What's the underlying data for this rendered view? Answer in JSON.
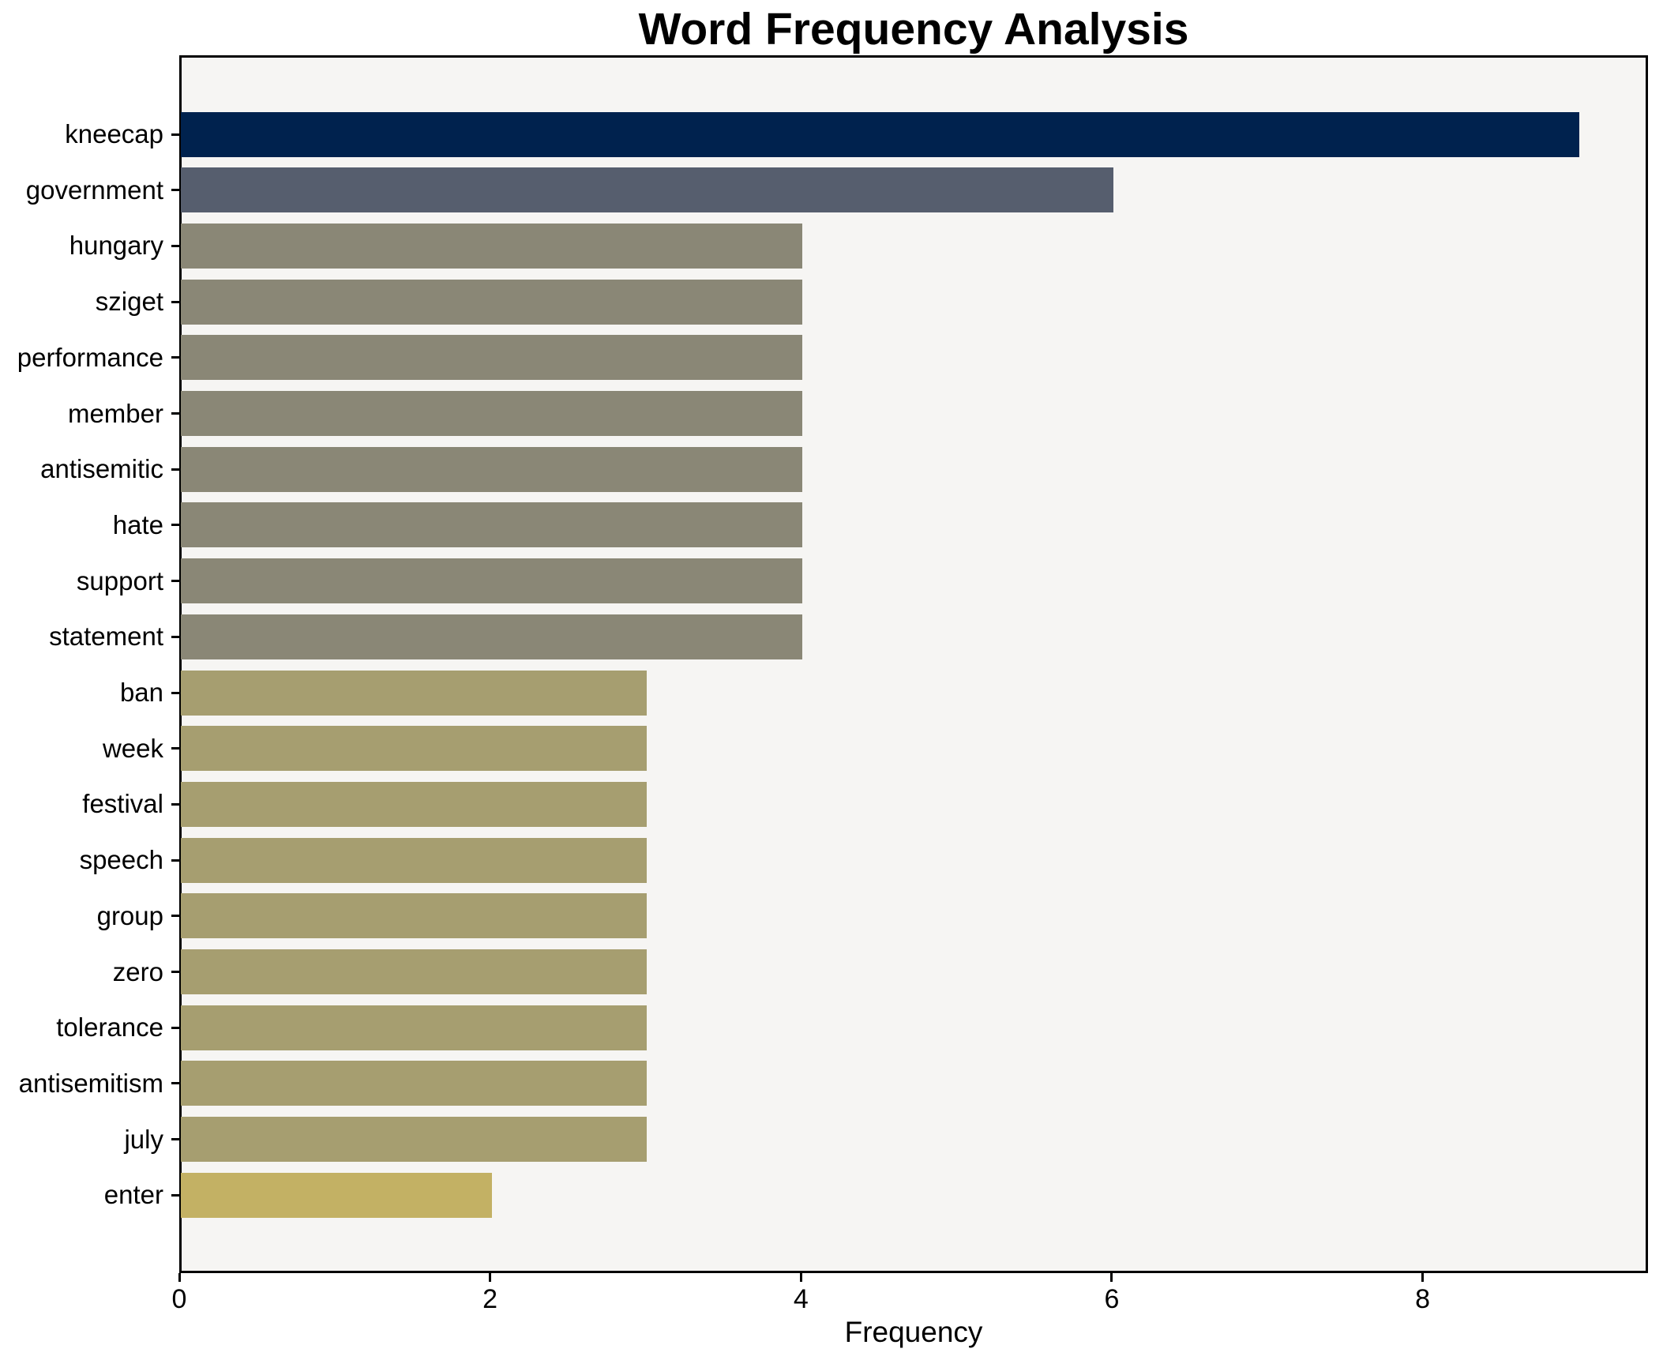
{
  "chart_data": {
    "type": "bar",
    "orientation": "horizontal",
    "title": "Word Frequency Analysis",
    "xlabel": "Frequency",
    "ylabel": "",
    "categories": [
      "kneecap",
      "government",
      "hungary",
      "sziget",
      "performance",
      "member",
      "antisemitic",
      "hate",
      "support",
      "statement",
      "ban",
      "week",
      "festival",
      "speech",
      "group",
      "zero",
      "tolerance",
      "antisemitism",
      "july",
      "enter"
    ],
    "values": [
      9,
      6,
      4,
      4,
      4,
      4,
      4,
      4,
      4,
      4,
      3,
      3,
      3,
      3,
      3,
      3,
      3,
      3,
      3,
      2
    ],
    "bar_colors": [
      "#00224e",
      "#565e6e",
      "#8a8776",
      "#8a8776",
      "#8a8776",
      "#8a8776",
      "#8a8776",
      "#8a8776",
      "#8a8776",
      "#8a8776",
      "#a69e70",
      "#a69e70",
      "#a69e70",
      "#a69e70",
      "#a69e70",
      "#a69e70",
      "#a69e70",
      "#a69e70",
      "#a69e70",
      "#c3b164"
    ],
    "x_ticks": [
      0,
      2,
      4,
      6,
      8
    ],
    "xlim": [
      0,
      9.45
    ],
    "grid": false,
    "legend": null,
    "plot_background": "#f6f5f3",
    "spine_color": "#000000",
    "text_color": "#000000"
  }
}
